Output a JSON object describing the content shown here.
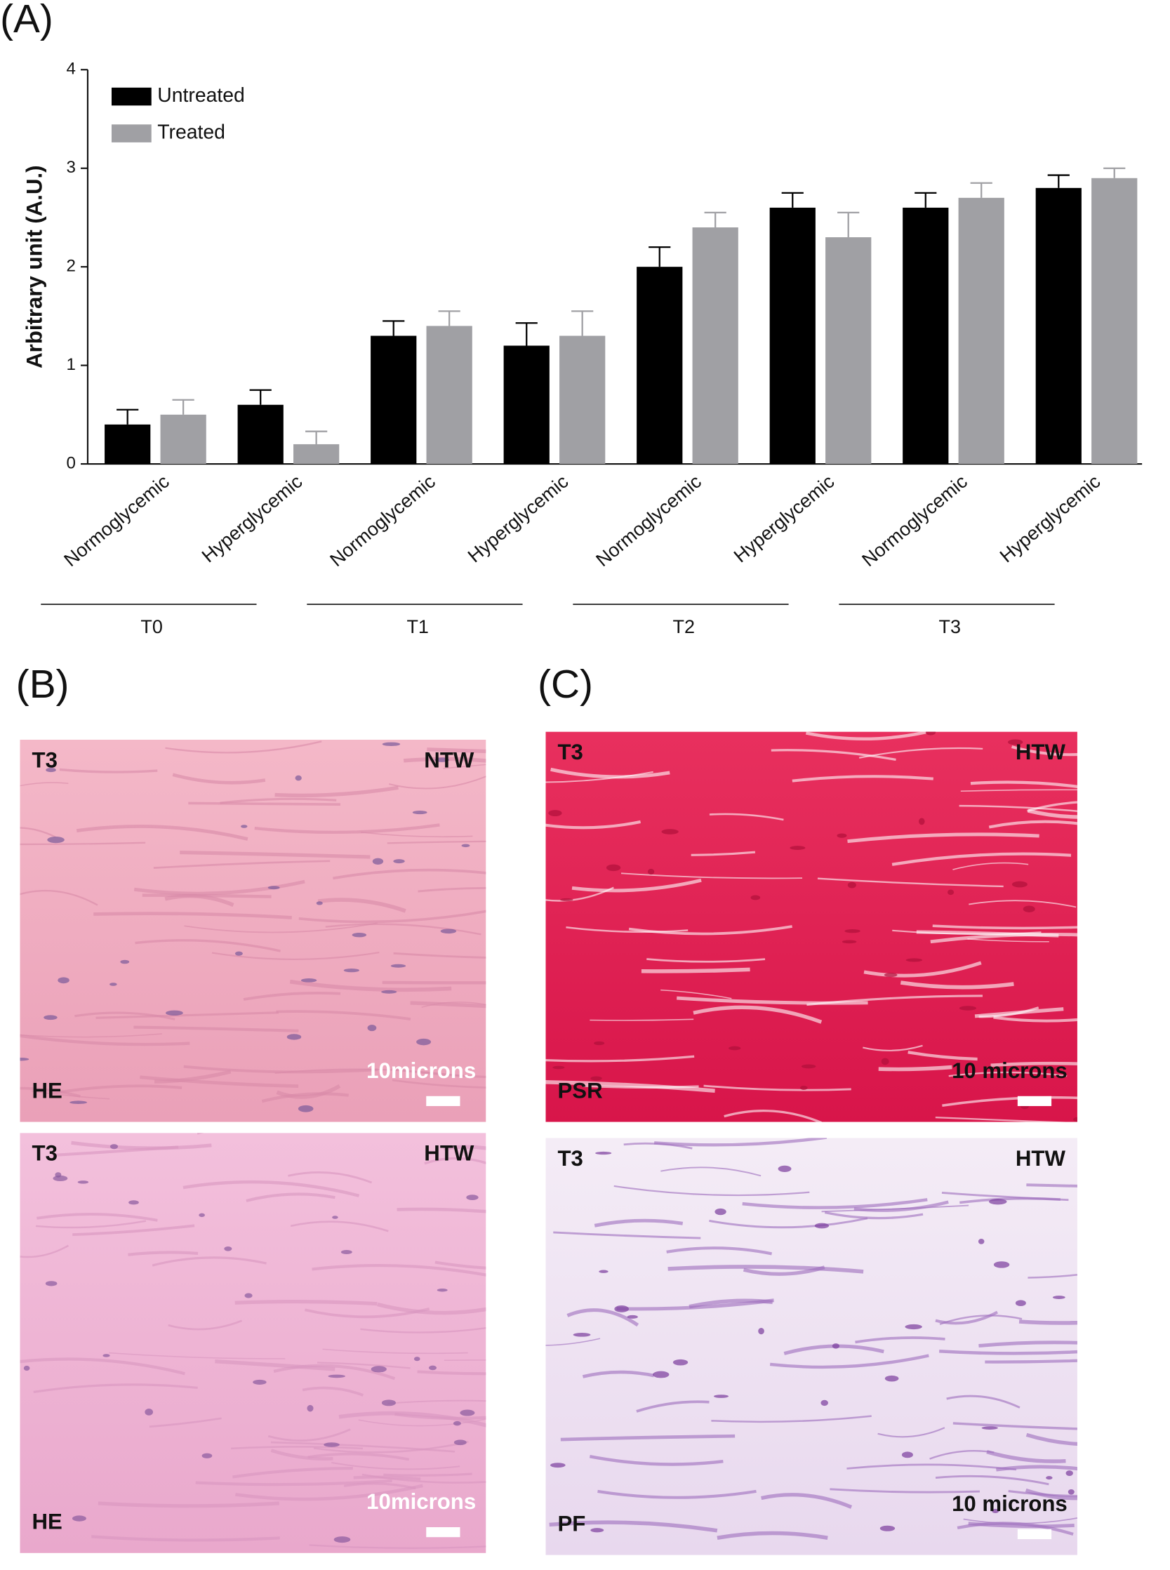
{
  "chart_data": {
    "type": "bar",
    "ylabel": "Arbitrary unit (A.U.)",
    "categories": [
      "Normoglycemic",
      "Hyperglycemic",
      "Normoglycemic",
      "Hyperglycemic",
      "Normoglycemic",
      "Hyperglycemic",
      "Normoglycemic",
      "Hyperglycemic"
    ],
    "group_labels": [
      "T0",
      "T1",
      "T2",
      "T3"
    ],
    "series": [
      {
        "name": "Untreated",
        "color": "#000000",
        "values": [
          0.4,
          0.6,
          1.3,
          1.2,
          2.0,
          2.6,
          2.6,
          2.8
        ],
        "errors": [
          0.15,
          0.15,
          0.15,
          0.23,
          0.2,
          0.15,
          0.15,
          0.13
        ]
      },
      {
        "name": "Treated",
        "color": "#a0a0a4",
        "values": [
          0.5,
          0.2,
          1.4,
          1.3,
          2.4,
          2.3,
          2.7,
          2.9
        ],
        "errors": [
          0.15,
          0.13,
          0.15,
          0.25,
          0.15,
          0.25,
          0.15,
          0.1
        ]
      }
    ],
    "ylim": [
      0,
      4
    ],
    "yticks": [
      0,
      1,
      2,
      3,
      4
    ],
    "legend": "upper left"
  },
  "figure_labels": [
    "(A)",
    "(B)",
    "(C)"
  ],
  "micrographs": [
    {
      "top_left": "T3",
      "top_right": "NTW",
      "bottom_left": "HE",
      "scale": "10microns"
    },
    {
      "top_left": "T3",
      "top_right": "HTW",
      "bottom_left": "HE",
      "scale": "10microns"
    },
    {
      "top_left": "T3",
      "top_right": "HTW",
      "bottom_left": "PSR",
      "scale": "10 microns"
    },
    {
      "top_left": "T3",
      "top_right": "HTW",
      "bottom_left": "PF",
      "scale": "10 microns"
    }
  ]
}
